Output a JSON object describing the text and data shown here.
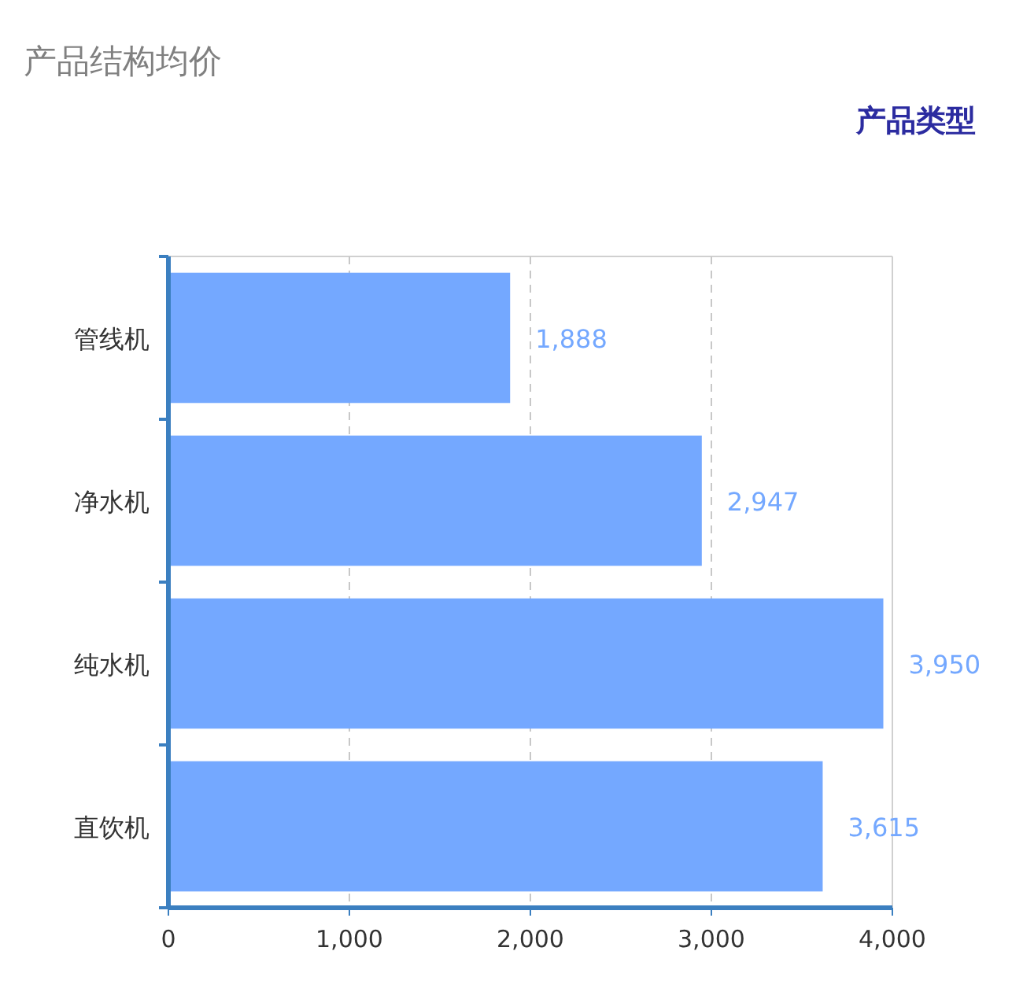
{
  "chart_data": {
    "type": "bar",
    "orientation": "horizontal",
    "title": "产品结构均价",
    "ylabel": "产品类型",
    "categories": [
      "管线机",
      "净水机",
      "纯水机",
      "直饮机"
    ],
    "values": [
      1888,
      2947,
      3950,
      3615
    ],
    "value_labels": [
      "1,888",
      "2,947",
      "3,950",
      "3,615"
    ],
    "color": "#74a8ff",
    "xlim": [
      0,
      4000
    ],
    "xticks": [
      0,
      {
        "value": 1000,
        "label": "1,000"
      },
      {
        "value": 2000,
        "label": "2,000"
      },
      {
        "value": 3000,
        "label": "3,000"
      },
      {
        "value": 4000,
        "label": "4,000"
      }
    ],
    "grid": "x"
  }
}
